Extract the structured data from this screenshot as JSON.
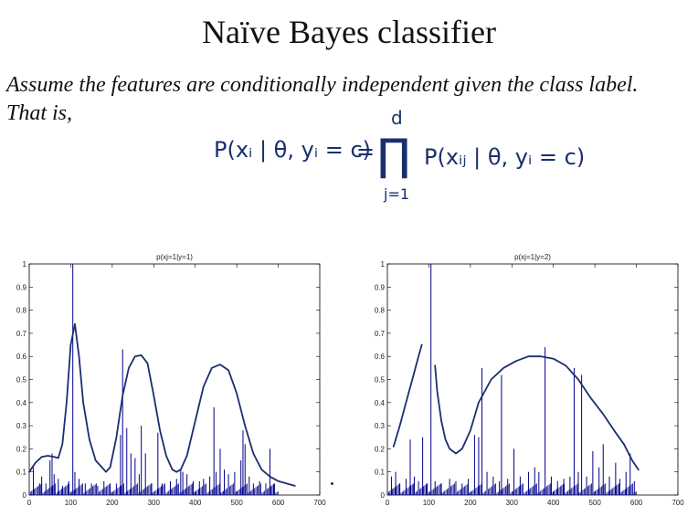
{
  "slide": {
    "title": "Naïve Bayes classifier",
    "line1": "Assume the features are conditionally independent given the class label.",
    "line2": "That is,",
    "formula": {
      "lhs": "P(xᵢ | θ, yᵢ = c)",
      "eq": "=",
      "prod_symbol": "∏",
      "upper": "d",
      "lower": "j=1",
      "rhs": "P(xᵢⱼ | θ, yᵢ = c)",
      "ink_color": "#1a2f6e"
    }
  },
  "chart_data": [
    {
      "type": "bar",
      "title": "p(xj=1|y=1)",
      "xlim": [
        0,
        700
      ],
      "ylim": [
        0,
        1
      ],
      "xticks": [
        0,
        100,
        200,
        300,
        400,
        500,
        600,
        700
      ],
      "yticks": [
        0,
        0.1,
        0.2,
        0.3,
        0.4,
        0.5,
        0.6,
        0.7,
        0.8,
        0.9,
        1
      ],
      "bar_color": "#00008b",
      "bars": [
        {
          "x": 10,
          "y": 0.12
        },
        {
          "x": 25,
          "y": 0.05
        },
        {
          "x": 30,
          "y": 0.08
        },
        {
          "x": 40,
          "y": 0.05
        },
        {
          "x": 50,
          "y": 0.15
        },
        {
          "x": 55,
          "y": 0.18
        },
        {
          "x": 60,
          "y": 0.09
        },
        {
          "x": 70,
          "y": 0.07
        },
        {
          "x": 80,
          "y": 0.04
        },
        {
          "x": 95,
          "y": 0.06
        },
        {
          "x": 105,
          "y": 1.0
        },
        {
          "x": 110,
          "y": 0.1
        },
        {
          "x": 120,
          "y": 0.07
        },
        {
          "x": 135,
          "y": 0.05
        },
        {
          "x": 150,
          "y": 0.05
        },
        {
          "x": 165,
          "y": 0.04
        },
        {
          "x": 180,
          "y": 0.06
        },
        {
          "x": 195,
          "y": 0.05
        },
        {
          "x": 210,
          "y": 0.05
        },
        {
          "x": 220,
          "y": 0.26
        },
        {
          "x": 225,
          "y": 0.63
        },
        {
          "x": 235,
          "y": 0.29
        },
        {
          "x": 245,
          "y": 0.18
        },
        {
          "x": 255,
          "y": 0.16
        },
        {
          "x": 265,
          "y": 0.09
        },
        {
          "x": 270,
          "y": 0.3
        },
        {
          "x": 280,
          "y": 0.18
        },
        {
          "x": 295,
          "y": 0.05
        },
        {
          "x": 310,
          "y": 0.27
        },
        {
          "x": 320,
          "y": 0.05
        },
        {
          "x": 340,
          "y": 0.06
        },
        {
          "x": 355,
          "y": 0.07
        },
        {
          "x": 365,
          "y": 0.11
        },
        {
          "x": 370,
          "y": 0.1
        },
        {
          "x": 380,
          "y": 0.09
        },
        {
          "x": 395,
          "y": 0.06
        },
        {
          "x": 410,
          "y": 0.06
        },
        {
          "x": 420,
          "y": 0.07
        },
        {
          "x": 435,
          "y": 0.08
        },
        {
          "x": 445,
          "y": 0.38
        },
        {
          "x": 450,
          "y": 0.1
        },
        {
          "x": 460,
          "y": 0.2
        },
        {
          "x": 470,
          "y": 0.11
        },
        {
          "x": 480,
          "y": 0.09
        },
        {
          "x": 495,
          "y": 0.1
        },
        {
          "x": 510,
          "y": 0.15
        },
        {
          "x": 515,
          "y": 0.28
        },
        {
          "x": 520,
          "y": 0.22
        },
        {
          "x": 530,
          "y": 0.08
        },
        {
          "x": 540,
          "y": 0.05
        },
        {
          "x": 555,
          "y": 0.06
        },
        {
          "x": 570,
          "y": 0.05
        },
        {
          "x": 580,
          "y": 0.2
        },
        {
          "x": 590,
          "y": 0.05
        }
      ],
      "curve": [
        [
          0,
          0.1
        ],
        [
          15,
          0.14
        ],
        [
          30,
          0.165
        ],
        [
          45,
          0.17
        ],
        [
          60,
          0.165
        ],
        [
          70,
          0.16
        ],
        [
          80,
          0.22
        ],
        [
          90,
          0.4
        ],
        [
          100,
          0.65
        ],
        [
          110,
          0.74
        ],
        [
          120,
          0.6
        ],
        [
          130,
          0.4
        ],
        [
          145,
          0.24
        ],
        [
          160,
          0.15
        ],
        [
          175,
          0.12
        ],
        [
          185,
          0.1
        ],
        [
          195,
          0.12
        ],
        [
          210,
          0.25
        ],
        [
          225,
          0.43
        ],
        [
          240,
          0.55
        ],
        [
          255,
          0.6
        ],
        [
          270,
          0.605
        ],
        [
          285,
          0.57
        ],
        [
          300,
          0.43
        ],
        [
          315,
          0.28
        ],
        [
          330,
          0.17
        ],
        [
          345,
          0.11
        ],
        [
          355,
          0.1
        ],
        [
          365,
          0.11
        ],
        [
          380,
          0.17
        ],
        [
          400,
          0.32
        ],
        [
          420,
          0.47
        ],
        [
          440,
          0.55
        ],
        [
          460,
          0.565
        ],
        [
          480,
          0.54
        ],
        [
          500,
          0.44
        ],
        [
          520,
          0.3
        ],
        [
          540,
          0.18
        ],
        [
          560,
          0.11
        ],
        [
          580,
          0.08
        ],
        [
          600,
          0.06
        ],
        [
          620,
          0.05
        ],
        [
          640,
          0.04
        ]
      ],
      "curve_color": "#1a2f6e"
    },
    {
      "type": "bar",
      "title": "p(xj=1|y=2)",
      "xlim": [
        0,
        700
      ],
      "ylim": [
        0,
        1
      ],
      "xticks": [
        0,
        100,
        200,
        300,
        400,
        500,
        600,
        700
      ],
      "yticks": [
        0,
        0.1,
        0.2,
        0.3,
        0.4,
        0.5,
        0.6,
        0.7,
        0.8,
        0.9,
        1
      ],
      "bar_color": "#00008b",
      "bars": [
        {
          "x": 10,
          "y": 0.08
        },
        {
          "x": 20,
          "y": 0.1
        },
        {
          "x": 30,
          "y": 0.05
        },
        {
          "x": 45,
          "y": 0.07
        },
        {
          "x": 55,
          "y": 0.24
        },
        {
          "x": 65,
          "y": 0.08
        },
        {
          "x": 75,
          "y": 0.06
        },
        {
          "x": 85,
          "y": 0.25
        },
        {
          "x": 95,
          "y": 0.05
        },
        {
          "x": 105,
          "y": 1.0
        },
        {
          "x": 115,
          "y": 0.06
        },
        {
          "x": 130,
          "y": 0.05
        },
        {
          "x": 150,
          "y": 0.07
        },
        {
          "x": 165,
          "y": 0.06
        },
        {
          "x": 180,
          "y": 0.05
        },
        {
          "x": 195,
          "y": 0.07
        },
        {
          "x": 210,
          "y": 0.26
        },
        {
          "x": 220,
          "y": 0.25
        },
        {
          "x": 228,
          "y": 0.55
        },
        {
          "x": 240,
          "y": 0.1
        },
        {
          "x": 255,
          "y": 0.08
        },
        {
          "x": 270,
          "y": 0.06
        },
        {
          "x": 275,
          "y": 0.52
        },
        {
          "x": 290,
          "y": 0.07
        },
        {
          "x": 305,
          "y": 0.2
        },
        {
          "x": 320,
          "y": 0.08
        },
        {
          "x": 340,
          "y": 0.1
        },
        {
          "x": 355,
          "y": 0.12
        },
        {
          "x": 365,
          "y": 0.1
        },
        {
          "x": 380,
          "y": 0.64
        },
        {
          "x": 395,
          "y": 0.08
        },
        {
          "x": 410,
          "y": 0.06
        },
        {
          "x": 425,
          "y": 0.07
        },
        {
          "x": 440,
          "y": 0.08
        },
        {
          "x": 450,
          "y": 0.55
        },
        {
          "x": 460,
          "y": 0.1
        },
        {
          "x": 468,
          "y": 0.52
        },
        {
          "x": 480,
          "y": 0.08
        },
        {
          "x": 495,
          "y": 0.19
        },
        {
          "x": 510,
          "y": 0.12
        },
        {
          "x": 520,
          "y": 0.22
        },
        {
          "x": 535,
          "y": 0.08
        },
        {
          "x": 550,
          "y": 0.14
        },
        {
          "x": 560,
          "y": 0.07
        },
        {
          "x": 575,
          "y": 0.1
        },
        {
          "x": 585,
          "y": 0.18
        },
        {
          "x": 595,
          "y": 0.06
        }
      ],
      "curve_segments": [
        [
          [
            15,
            0.21
          ],
          [
            30,
            0.3
          ],
          [
            45,
            0.4
          ],
          [
            60,
            0.5
          ],
          [
            75,
            0.6
          ],
          [
            83,
            0.65
          ]
        ],
        [
          [
            115,
            0.56
          ],
          [
            120,
            0.45
          ],
          [
            130,
            0.32
          ],
          [
            140,
            0.24
          ],
          [
            150,
            0.2
          ],
          [
            165,
            0.18
          ],
          [
            180,
            0.2
          ],
          [
            200,
            0.28
          ],
          [
            220,
            0.4
          ],
          [
            250,
            0.5
          ],
          [
            280,
            0.55
          ],
          [
            310,
            0.58
          ],
          [
            340,
            0.6
          ],
          [
            370,
            0.6
          ],
          [
            400,
            0.59
          ],
          [
            430,
            0.56
          ],
          [
            460,
            0.5
          ],
          [
            490,
            0.42
          ],
          [
            520,
            0.35
          ],
          [
            550,
            0.27
          ],
          [
            570,
            0.22
          ],
          [
            590,
            0.15
          ],
          [
            605,
            0.11
          ]
        ]
      ],
      "curve_color": "#1a2f6e"
    }
  ]
}
